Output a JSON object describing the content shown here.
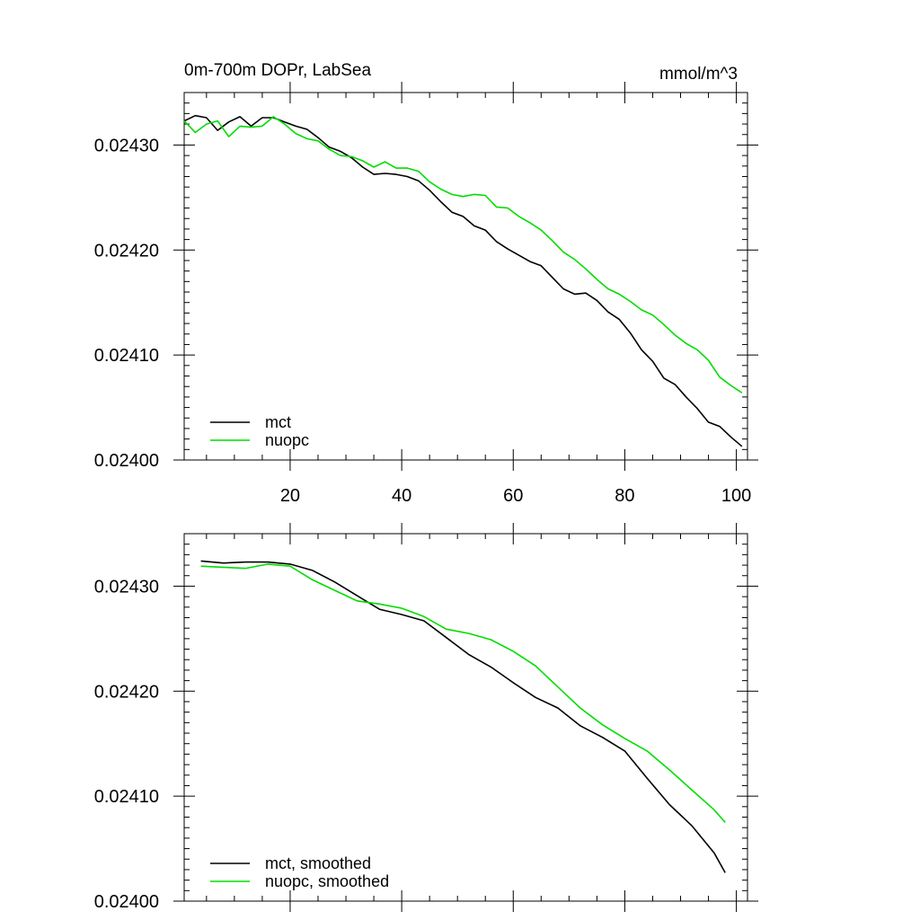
{
  "chart_data": [
    {
      "type": "line",
      "title": "0m-700m DOPr, LabSea",
      "units": "mmol/m^3",
      "xlim": [
        1,
        102
      ],
      "ylim": [
        0.024,
        0.02435
      ],
      "xticks": [
        20,
        40,
        60,
        80,
        100
      ],
      "xtick_labels": [
        "20",
        "40",
        "60",
        "80",
        "100"
      ],
      "yticks": [
        0.024,
        0.0241,
        0.0242,
        0.0243
      ],
      "ytick_labels": [
        "0.02400",
        "0.02410",
        "0.02420",
        "0.02430"
      ],
      "legend_position": "bottom-left",
      "series": [
        {
          "name": "mct",
          "color": "#000000",
          "x": [
            1,
            3,
            5,
            7,
            9,
            11,
            13,
            15,
            17,
            19,
            21,
            23,
            25,
            27,
            29,
            31,
            33,
            35,
            37,
            39,
            41,
            43,
            45,
            47,
            49,
            51,
            53,
            55,
            57,
            59,
            61,
            63,
            65,
            67,
            69,
            71,
            73,
            75,
            77,
            79,
            81,
            83,
            85,
            87,
            89,
            91,
            93,
            95,
            97,
            99,
            101
          ],
          "y": [
            0.024323,
            0.024328,
            0.024326,
            0.024314,
            0.024322,
            0.024327,
            0.024318,
            0.024326,
            0.024326,
            0.024322,
            0.024318,
            0.024315,
            0.024307,
            0.024298,
            0.024294,
            0.024288,
            0.024279,
            0.024272,
            0.024273,
            0.024272,
            0.02427,
            0.024266,
            0.024257,
            0.024246,
            0.024236,
            0.024232,
            0.024223,
            0.024219,
            0.024208,
            0.024201,
            0.024195,
            0.024189,
            0.024185,
            0.024174,
            0.024163,
            0.024158,
            0.024159,
            0.024152,
            0.024141,
            0.024134,
            0.024121,
            0.024105,
            0.024094,
            0.024078,
            0.024072,
            0.02406,
            0.024049,
            0.024036,
            0.024032,
            0.024022,
            0.024013
          ]
        },
        {
          "name": "nuopc",
          "color": "#00dd00",
          "x": [
            1,
            3,
            5,
            7,
            9,
            11,
            13,
            15,
            17,
            19,
            21,
            23,
            25,
            27,
            29,
            31,
            33,
            35,
            37,
            39,
            41,
            43,
            45,
            47,
            49,
            51,
            53,
            55,
            57,
            59,
            61,
            63,
            65,
            67,
            69,
            71,
            73,
            75,
            77,
            79,
            81,
            83,
            85,
            87,
            89,
            91,
            93,
            95,
            97,
            99,
            101
          ],
          "y": [
            0.024323,
            0.024312,
            0.02432,
            0.024323,
            0.024308,
            0.024318,
            0.024317,
            0.024318,
            0.024327,
            0.02432,
            0.024311,
            0.024306,
            0.024304,
            0.024296,
            0.02429,
            0.024289,
            0.024285,
            0.024279,
            0.024284,
            0.024278,
            0.024278,
            0.024275,
            0.024265,
            0.024258,
            0.024253,
            0.024251,
            0.024253,
            0.024252,
            0.024241,
            0.02424,
            0.024232,
            0.024226,
            0.024219,
            0.024209,
            0.024198,
            0.024191,
            0.024182,
            0.024172,
            0.024163,
            0.024158,
            0.024151,
            0.024143,
            0.024138,
            0.024129,
            0.024119,
            0.024111,
            0.024105,
            0.024095,
            0.024079,
            0.024071,
            0.024064
          ]
        }
      ]
    },
    {
      "type": "line",
      "title": "",
      "units": "",
      "xlim": [
        1,
        102
      ],
      "ylim": [
        0.024,
        0.02435
      ],
      "xticks": [
        20,
        40,
        60,
        80,
        100
      ],
      "xtick_labels": [],
      "yticks": [
        0.024,
        0.0241,
        0.0242,
        0.0243
      ],
      "ytick_labels": [
        "0.02400",
        "0.02410",
        "0.02420",
        "0.02430"
      ],
      "legend_position": "bottom-left",
      "series": [
        {
          "name": "mct, smoothed",
          "color": "#000000",
          "x": [
            4,
            8,
            12,
            16,
            20,
            24,
            28,
            32,
            36,
            40,
            44,
            48,
            52,
            56,
            60,
            64,
            68,
            72,
            76,
            80,
            84,
            88,
            92,
            96,
            98
          ],
          "y": [
            0.024324,
            0.024322,
            0.024323,
            0.024323,
            0.024321,
            0.024315,
            0.024304,
            0.024291,
            0.024278,
            0.024273,
            0.024267,
            0.024251,
            0.024235,
            0.024223,
            0.024208,
            0.024194,
            0.024184,
            0.024167,
            0.024156,
            0.024143,
            0.024117,
            0.024092,
            0.024072,
            0.024046,
            0.024027
          ]
        },
        {
          "name": "nuopc, smoothed",
          "color": "#00dd00",
          "x": [
            4,
            8,
            12,
            16,
            20,
            24,
            28,
            32,
            36,
            40,
            44,
            48,
            52,
            56,
            60,
            64,
            68,
            72,
            76,
            80,
            84,
            88,
            92,
            96,
            98
          ],
          "y": [
            0.024319,
            0.024318,
            0.024317,
            0.024321,
            0.024319,
            0.024306,
            0.024296,
            0.024286,
            0.024283,
            0.024279,
            0.024271,
            0.024259,
            0.024255,
            0.024249,
            0.024238,
            0.024224,
            0.024204,
            0.024184,
            0.024168,
            0.024155,
            0.024143,
            0.024125,
            0.024106,
            0.024087,
            0.024075
          ]
        }
      ]
    }
  ]
}
